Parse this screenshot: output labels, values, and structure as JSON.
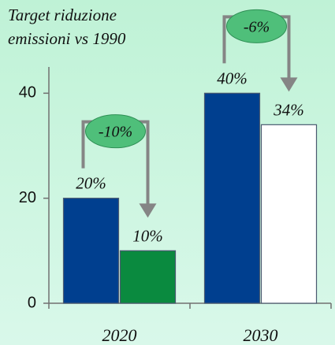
{
  "chart_data": {
    "type": "bar",
    "title": "Target riduzione emissioni vs 1990",
    "categories": [
      "2020",
      "2030"
    ],
    "series": [
      {
        "color": "#003f8f",
        "values": [
          20,
          40
        ],
        "value_labels": [
          "20%",
          "40%"
        ]
      },
      {
        "colors": [
          "#0a8a3f",
          "#ffffff"
        ],
        "values": [
          10,
          34
        ],
        "value_labels": [
          "10%",
          "34%"
        ]
      }
    ],
    "annotations": [
      "-10%",
      "-6%"
    ],
    "ylim": [
      0,
      45
    ],
    "yticks": [
      0,
      20,
      40
    ]
  }
}
